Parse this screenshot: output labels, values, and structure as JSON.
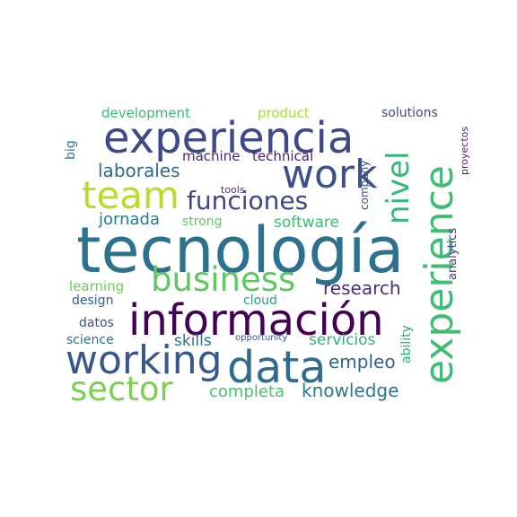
{
  "words": [
    {
      "key": "tecnologia",
      "text": "tecnología",
      "color": "#2c718e"
    },
    {
      "key": "experiencia",
      "text": "experiencia",
      "color": "#3e4989"
    },
    {
      "key": "informacion",
      "text": "información",
      "color": "#440154"
    },
    {
      "key": "experience",
      "text": "experience",
      "color": "#40bd72"
    },
    {
      "key": "data",
      "text": "data",
      "color": "#2f6b8e"
    },
    {
      "key": "working",
      "text": "working",
      "color": "#38588c"
    },
    {
      "key": "work",
      "text": "work",
      "color": "#3b518b"
    },
    {
      "key": "team",
      "text": "team",
      "color": "#b5de2b"
    },
    {
      "key": "business",
      "text": "business",
      "color": "#5ec962"
    },
    {
      "key": "sector",
      "text": "sector",
      "color": "#7ad151"
    },
    {
      "key": "funciones",
      "text": "funciones",
      "color": "#414487"
    },
    {
      "key": "nivel",
      "text": "nivel",
      "color": "#35b779"
    },
    {
      "key": "laborales",
      "text": "laborales",
      "color": "#31688e"
    },
    {
      "key": "jornada",
      "text": "jornada",
      "color": "#287c8e"
    },
    {
      "key": "research",
      "text": "research",
      "color": "#472d7b"
    },
    {
      "key": "knowledge",
      "text": "knowledge",
      "color": "#2a788e"
    },
    {
      "key": "empleo",
      "text": "empleo",
      "color": "#33638d"
    },
    {
      "key": "completa",
      "text": "completa",
      "color": "#4ac16d"
    },
    {
      "key": "software",
      "text": "software",
      "color": "#3dbc74"
    },
    {
      "key": "servicios",
      "text": "servicios",
      "color": "#2db27d"
    },
    {
      "key": "skills",
      "text": "skills",
      "color": "#2c728e"
    },
    {
      "key": "learning",
      "text": "learning",
      "color": "#6ccd5a"
    },
    {
      "key": "development",
      "text": "development",
      "color": "#3aba76"
    },
    {
      "key": "product",
      "text": "product",
      "color": "#a8db34"
    },
    {
      "key": "solutions",
      "text": "solutions",
      "color": "#3e4c8a"
    },
    {
      "key": "machine",
      "text": "machine",
      "color": "#482878"
    },
    {
      "key": "technical",
      "text": "technical",
      "color": "#482173"
    },
    {
      "key": "design",
      "text": "design",
      "color": "#33628d"
    },
    {
      "key": "cloud",
      "text": "cloud",
      "color": "#2a9b8a"
    },
    {
      "key": "datos",
      "text": "datos",
      "color": "#3b528b"
    },
    {
      "key": "science",
      "text": "science",
      "color": "#2f6c8e"
    },
    {
      "key": "strong",
      "text": "strong",
      "color": "#5ec962"
    },
    {
      "key": "tools",
      "text": "tools",
      "color": "#46327e"
    },
    {
      "key": "opportunity",
      "text": "opportunity",
      "color": "#3b528b"
    },
    {
      "key": "big",
      "text": "big",
      "color": "#2c718e"
    },
    {
      "key": "company",
      "text": "company",
      "color": "#3e4c8a"
    },
    {
      "key": "ability",
      "text": "ability",
      "color": "#27ad81"
    },
    {
      "key": "analytics",
      "text": "analytics",
      "color": "#424086"
    },
    {
      "key": "proyectos",
      "text": "proyectos",
      "color": "#481f70"
    }
  ]
}
